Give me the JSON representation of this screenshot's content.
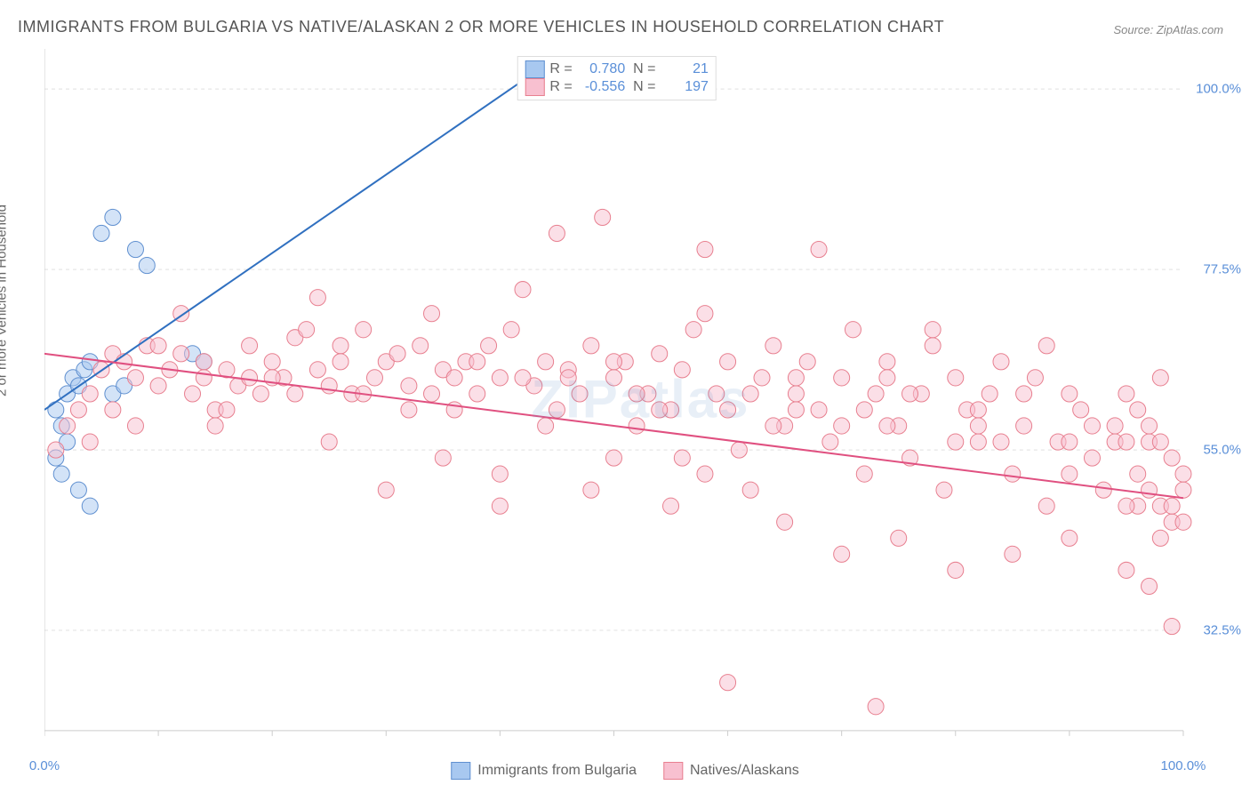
{
  "title": "IMMIGRANTS FROM BULGARIA VS NATIVE/ALASKAN 2 OR MORE VEHICLES IN HOUSEHOLD CORRELATION CHART",
  "source": "Source: ZipAtlas.com",
  "y_axis_label": "2 or more Vehicles in Household",
  "watermark": "ZIPatlas",
  "chart": {
    "type": "scatter",
    "xlim": [
      0,
      100
    ],
    "ylim": [
      20,
      105
    ],
    "y_ticks": [
      32.5,
      55.0,
      77.5,
      100.0
    ],
    "y_tick_labels": [
      "32.5%",
      "55.0%",
      "77.5%",
      "100.0%"
    ],
    "x_ticks": [
      0,
      10,
      20,
      30,
      40,
      50,
      60,
      70,
      80,
      90,
      100
    ],
    "x_tick_labels": {
      "0": "0.0%",
      "100": "100.0%"
    },
    "grid_color": "#e0e0e0",
    "axis_color": "#cccccc",
    "background_color": "#ffffff",
    "marker_radius": 9,
    "marker_opacity": 0.5,
    "series": [
      {
        "name": "Immigrants from Bulgia",
        "label": "Immigrants from Bulgaria",
        "color_fill": "#a8c8f0",
        "color_stroke": "#6090d0",
        "R": "0.780",
        "N": "21",
        "trend_line": {
          "x1": 0,
          "y1": 60,
          "x2": 44,
          "y2": 103,
          "color": "#3070c0",
          "width": 2
        },
        "points": [
          [
            1,
            60
          ],
          [
            1.5,
            58
          ],
          [
            2,
            62
          ],
          [
            2.5,
            64
          ],
          [
            3,
            63
          ],
          [
            3.5,
            65
          ],
          [
            4,
            66
          ],
          [
            5,
            82
          ],
          [
            6,
            84
          ],
          [
            8,
            80
          ],
          [
            9,
            78
          ],
          [
            13,
            67
          ],
          [
            14,
            66
          ],
          [
            1,
            54
          ],
          [
            1.5,
            52
          ],
          [
            2,
            56
          ],
          [
            3,
            50
          ],
          [
            4,
            48
          ],
          [
            44,
            103
          ],
          [
            6,
            62
          ],
          [
            7,
            63
          ]
        ]
      },
      {
        "name": "Natives/Alaskans",
        "label": "Natives/Alaskans",
        "color_fill": "#f8c0d0",
        "color_stroke": "#e88090",
        "R": "-0.556",
        "N": "197",
        "trend_line": {
          "x1": 0,
          "y1": 67,
          "x2": 100,
          "y2": 49,
          "color": "#e05080",
          "width": 2
        },
        "points": [
          [
            1,
            55
          ],
          [
            2,
            58
          ],
          [
            3,
            60
          ],
          [
            4,
            62
          ],
          [
            5,
            65
          ],
          [
            6,
            67
          ],
          [
            7,
            66
          ],
          [
            8,
            64
          ],
          [
            9,
            68
          ],
          [
            10,
            63
          ],
          [
            11,
            65
          ],
          [
            12,
            67
          ],
          [
            13,
            62
          ],
          [
            14,
            66
          ],
          [
            15,
            60
          ],
          [
            16,
            65
          ],
          [
            17,
            63
          ],
          [
            18,
            68
          ],
          [
            19,
            62
          ],
          [
            20,
            66
          ],
          [
            21,
            64
          ],
          [
            22,
            69
          ],
          [
            23,
            70
          ],
          [
            24,
            65
          ],
          [
            25,
            63
          ],
          [
            26,
            68
          ],
          [
            27,
            62
          ],
          [
            28,
            70
          ],
          [
            29,
            64
          ],
          [
            30,
            66
          ],
          [
            31,
            67
          ],
          [
            32,
            63
          ],
          [
            33,
            68
          ],
          [
            34,
            72
          ],
          [
            35,
            65
          ],
          [
            36,
            60
          ],
          [
            37,
            66
          ],
          [
            38,
            62
          ],
          [
            39,
            68
          ],
          [
            40,
            64
          ],
          [
            41,
            70
          ],
          [
            42,
            75
          ],
          [
            43,
            63
          ],
          [
            44,
            66
          ],
          [
            45,
            60
          ],
          [
            46,
            65
          ],
          [
            47,
            62
          ],
          [
            48,
            68
          ],
          [
            49,
            84
          ],
          [
            50,
            64
          ],
          [
            51,
            66
          ],
          [
            52,
            58
          ],
          [
            53,
            62
          ],
          [
            54,
            67
          ],
          [
            55,
            60
          ],
          [
            56,
            65
          ],
          [
            57,
            70
          ],
          [
            58,
            80
          ],
          [
            59,
            62
          ],
          [
            60,
            66
          ],
          [
            61,
            55
          ],
          [
            62,
            50
          ],
          [
            63,
            64
          ],
          [
            64,
            68
          ],
          [
            65,
            58
          ],
          [
            66,
            62
          ],
          [
            67,
            66
          ],
          [
            68,
            60
          ],
          [
            69,
            56
          ],
          [
            70,
            64
          ],
          [
            71,
            70
          ],
          [
            72,
            52
          ],
          [
            73,
            62
          ],
          [
            74,
            66
          ],
          [
            75,
            58
          ],
          [
            76,
            54
          ],
          [
            77,
            62
          ],
          [
            78,
            68
          ],
          [
            79,
            50
          ],
          [
            80,
            64
          ],
          [
            81,
            60
          ],
          [
            82,
            56
          ],
          [
            83,
            62
          ],
          [
            84,
            66
          ],
          [
            85,
            52
          ],
          [
            86,
            58
          ],
          [
            87,
            64
          ],
          [
            88,
            48
          ],
          [
            89,
            56
          ],
          [
            90,
            62
          ],
          [
            91,
            60
          ],
          [
            92,
            54
          ],
          [
            93,
            50
          ],
          [
            94,
            58
          ],
          [
            95,
            62
          ],
          [
            96,
            48
          ],
          [
            97,
            56
          ],
          [
            98,
            64
          ],
          [
            99,
            46
          ],
          [
            100,
            52
          ],
          [
            15,
            58
          ],
          [
            25,
            56
          ],
          [
            35,
            54
          ],
          [
            45,
            82
          ],
          [
            55,
            48
          ],
          [
            65,
            46
          ],
          [
            75,
            44
          ],
          [
            85,
            42
          ],
          [
            95,
            40
          ],
          [
            97,
            38
          ],
          [
            99,
            33
          ],
          [
            30,
            50
          ],
          [
            40,
            52
          ],
          [
            50,
            54
          ],
          [
            60,
            26
          ],
          [
            70,
            42
          ],
          [
            80,
            40
          ],
          [
            90,
            44
          ],
          [
            95,
            48
          ],
          [
            96,
            52
          ],
          [
            97,
            50
          ],
          [
            98,
            48
          ],
          [
            99,
            54
          ],
          [
            100,
            50
          ],
          [
            48,
            50
          ],
          [
            58,
            52
          ],
          [
            68,
            80
          ],
          [
            78,
            70
          ],
          [
            88,
            68
          ],
          [
            4,
            56
          ],
          [
            8,
            58
          ],
          [
            12,
            72
          ],
          [
            16,
            60
          ],
          [
            24,
            74
          ],
          [
            28,
            62
          ],
          [
            32,
            60
          ],
          [
            36,
            64
          ],
          [
            44,
            58
          ],
          [
            52,
            62
          ],
          [
            56,
            54
          ],
          [
            64,
            58
          ],
          [
            72,
            60
          ],
          [
            76,
            62
          ],
          [
            84,
            56
          ],
          [
            92,
            58
          ],
          [
            6,
            60
          ],
          [
            14,
            64
          ],
          [
            22,
            62
          ],
          [
            38,
            66
          ],
          [
            46,
            64
          ],
          [
            54,
            60
          ],
          [
            62,
            62
          ],
          [
            66,
            64
          ],
          [
            74,
            58
          ],
          [
            82,
            60
          ],
          [
            86,
            62
          ],
          [
            94,
            56
          ],
          [
            18,
            64
          ],
          [
            26,
            66
          ],
          [
            34,
            62
          ],
          [
            42,
            64
          ],
          [
            58,
            72
          ],
          [
            66,
            60
          ],
          [
            74,
            64
          ],
          [
            82,
            58
          ],
          [
            90,
            56
          ],
          [
            98,
            44
          ],
          [
            10,
            68
          ],
          [
            20,
            64
          ],
          [
            40,
            48
          ],
          [
            50,
            66
          ],
          [
            60,
            60
          ],
          [
            70,
            58
          ],
          [
            80,
            56
          ],
          [
            90,
            52
          ],
          [
            95,
            56
          ],
          [
            96,
            60
          ],
          [
            97,
            58
          ],
          [
            98,
            56
          ],
          [
            99,
            48
          ],
          [
            100,
            46
          ],
          [
            73,
            23
          ]
        ]
      }
    ]
  },
  "legend_bottom": {
    "item1_label": "Immigrants from Bulgaria",
    "item2_label": "Natives/Alaskans"
  }
}
